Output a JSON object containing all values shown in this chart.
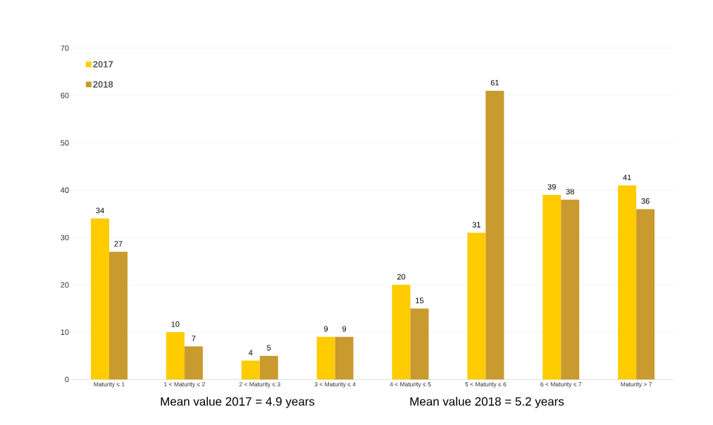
{
  "chart_data": {
    "type": "bar",
    "categories": [
      "Maturity ≤ 1",
      "1 < Maturity ≤ 2",
      "2 < Maturity ≤ 3",
      "3 < Maturity ≤ 4",
      "4 < Maturity ≤ 5",
      "5 < Maturity ≤ 6",
      "6 < Maturity ≤ 7",
      "Maturity > 7"
    ],
    "series": [
      {
        "name": "2017",
        "color": "#ffcc00",
        "values": [
          34,
          10,
          4,
          9,
          20,
          31,
          39,
          41
        ]
      },
      {
        "name": "2018",
        "color": "#c99a2e",
        "values": [
          27,
          7,
          5,
          9,
          15,
          61,
          38,
          36
        ]
      }
    ],
    "ylim": [
      0,
      70
    ],
    "yticks": [
      0,
      10,
      20,
      30,
      40,
      50,
      60,
      70
    ],
    "grid": "y",
    "legend": "top left",
    "data_labels": true,
    "annotations": [
      "Mean value 2017 =  4.9 years",
      "Mean value 2018 = 5.2 years"
    ]
  }
}
